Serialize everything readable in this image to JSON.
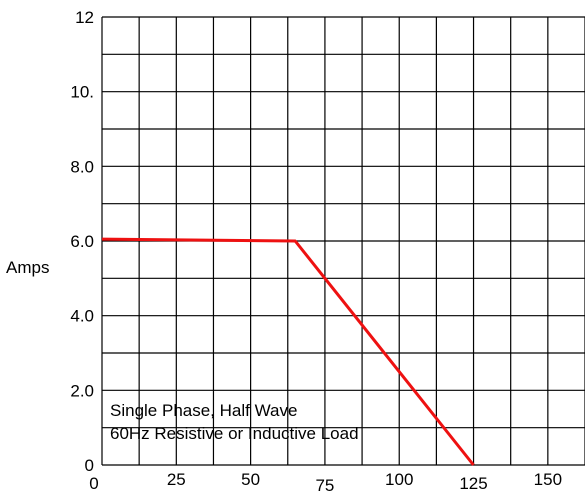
{
  "chart_data": {
    "type": "line",
    "title": "",
    "xlabel": "",
    "ylabel": "Amps",
    "xlim": [
      0,
      162.5
    ],
    "ylim": [
      0,
      12
    ],
    "grid": true,
    "series": [
      {
        "color": "#ee1111",
        "points": [
          [
            0,
            6.05
          ],
          [
            65,
            6.0
          ],
          [
            125,
            0
          ]
        ]
      }
    ],
    "x_ticks": [
      {
        "value": 0,
        "label": "0"
      },
      {
        "value": 25,
        "label": "25"
      },
      {
        "value": 50,
        "label": "50"
      },
      {
        "value": 75,
        "label": "75"
      },
      {
        "value": 100,
        "label": "100"
      },
      {
        "value": 125,
        "label": "125"
      },
      {
        "value": 150,
        "label": "150"
      }
    ],
    "y_ticks": [
      {
        "value": 0,
        "label": "0"
      },
      {
        "value": 2,
        "label": "2.0"
      },
      {
        "value": 4,
        "label": "4.0"
      },
      {
        "value": 6,
        "label": "6.0"
      },
      {
        "value": 8,
        "label": "8.0"
      },
      {
        "value": 10,
        "label": "10."
      },
      {
        "value": 12,
        "label": "12"
      }
    ],
    "annotations": [
      "Single Phase, Half Wave",
      "60Hz Resistive or Inductive Load"
    ]
  }
}
